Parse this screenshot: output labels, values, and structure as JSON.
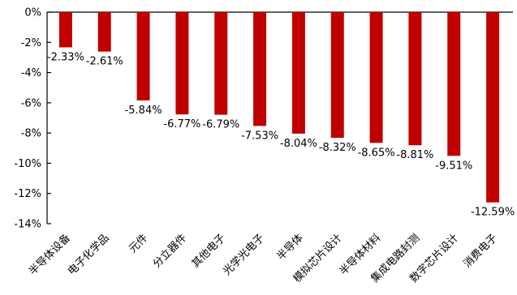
{
  "chart_data": {
    "type": "bar",
    "categories": [
      "半导体设备",
      "电子化学品",
      "元件",
      "分立器件",
      "其他电子",
      "光学光电子",
      "半导体",
      "模拟芯片设计",
      "半导体材料",
      "集成电路封测",
      "数字芯片设计",
      "消费电子"
    ],
    "values": [
      -2.33,
      -2.61,
      -5.84,
      -6.77,
      -6.79,
      -7.53,
      -8.04,
      -8.32,
      -8.65,
      -8.81,
      -9.51,
      -12.59
    ],
    "data_labels": [
      "-2.33%",
      "-2.61%",
      "-5.84%",
      "-6.77%",
      "-6.79%",
      "-7.53%",
      "-8.04%",
      "-8.32%",
      "-8.65%",
      "-8.81%",
      "-9.51%",
      "-12.59%"
    ],
    "ylim": [
      -14,
      0
    ],
    "yticks": [
      0,
      -2,
      -4,
      -6,
      -8,
      -10,
      -12,
      -14
    ],
    "ytick_labels": [
      "0%",
      "-2%",
      "-4%",
      "-6%",
      "-8%",
      "-10%",
      "-12%",
      "-14%"
    ],
    "grid": false,
    "bar_color": "#C00000",
    "title": "",
    "xlabel": "",
    "ylabel": ""
  }
}
